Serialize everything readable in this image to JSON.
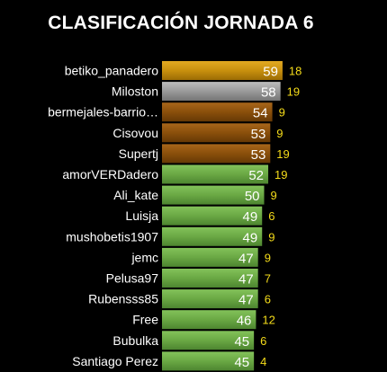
{
  "chart_data": {
    "type": "bar",
    "orientation": "horizontal",
    "title": "CLASIFICACIÓN JORNADA 6",
    "xlabel": "",
    "ylabel": "",
    "categories": [
      "betiko_panadero",
      "Miloston",
      "bermejales-barrio…",
      "Cisovou",
      "Supertj",
      "amorVERDadero",
      "Ali_kate",
      "Luisja",
      "mushobetis1907",
      "jemc",
      "Pelusa97",
      "Rubensss85",
      "Free",
      "Bubulka",
      "Santiago Perez"
    ],
    "values": [
      59,
      58,
      54,
      53,
      53,
      52,
      50,
      49,
      49,
      47,
      47,
      47,
      46,
      45,
      45
    ],
    "secondary_values": [
      18,
      19,
      9,
      9,
      19,
      19,
      9,
      6,
      9,
      9,
      7,
      6,
      12,
      6,
      4
    ],
    "xlim": [
      0,
      60
    ],
    "grid": false,
    "legend": "none",
    "colors": {
      "gold": "#c8900e",
      "silver": "#9a9a9a",
      "bronze": "#8a4f0b",
      "green": "#6aa844",
      "value_text": "#ffffff",
      "secondary_text": "#f5dc1a",
      "background": "#000000"
    },
    "bar_colors": [
      "gold",
      "silver",
      "bronze",
      "bronze",
      "bronze",
      "green",
      "green",
      "green",
      "green",
      "green",
      "green",
      "green",
      "green",
      "green",
      "green"
    ]
  }
}
